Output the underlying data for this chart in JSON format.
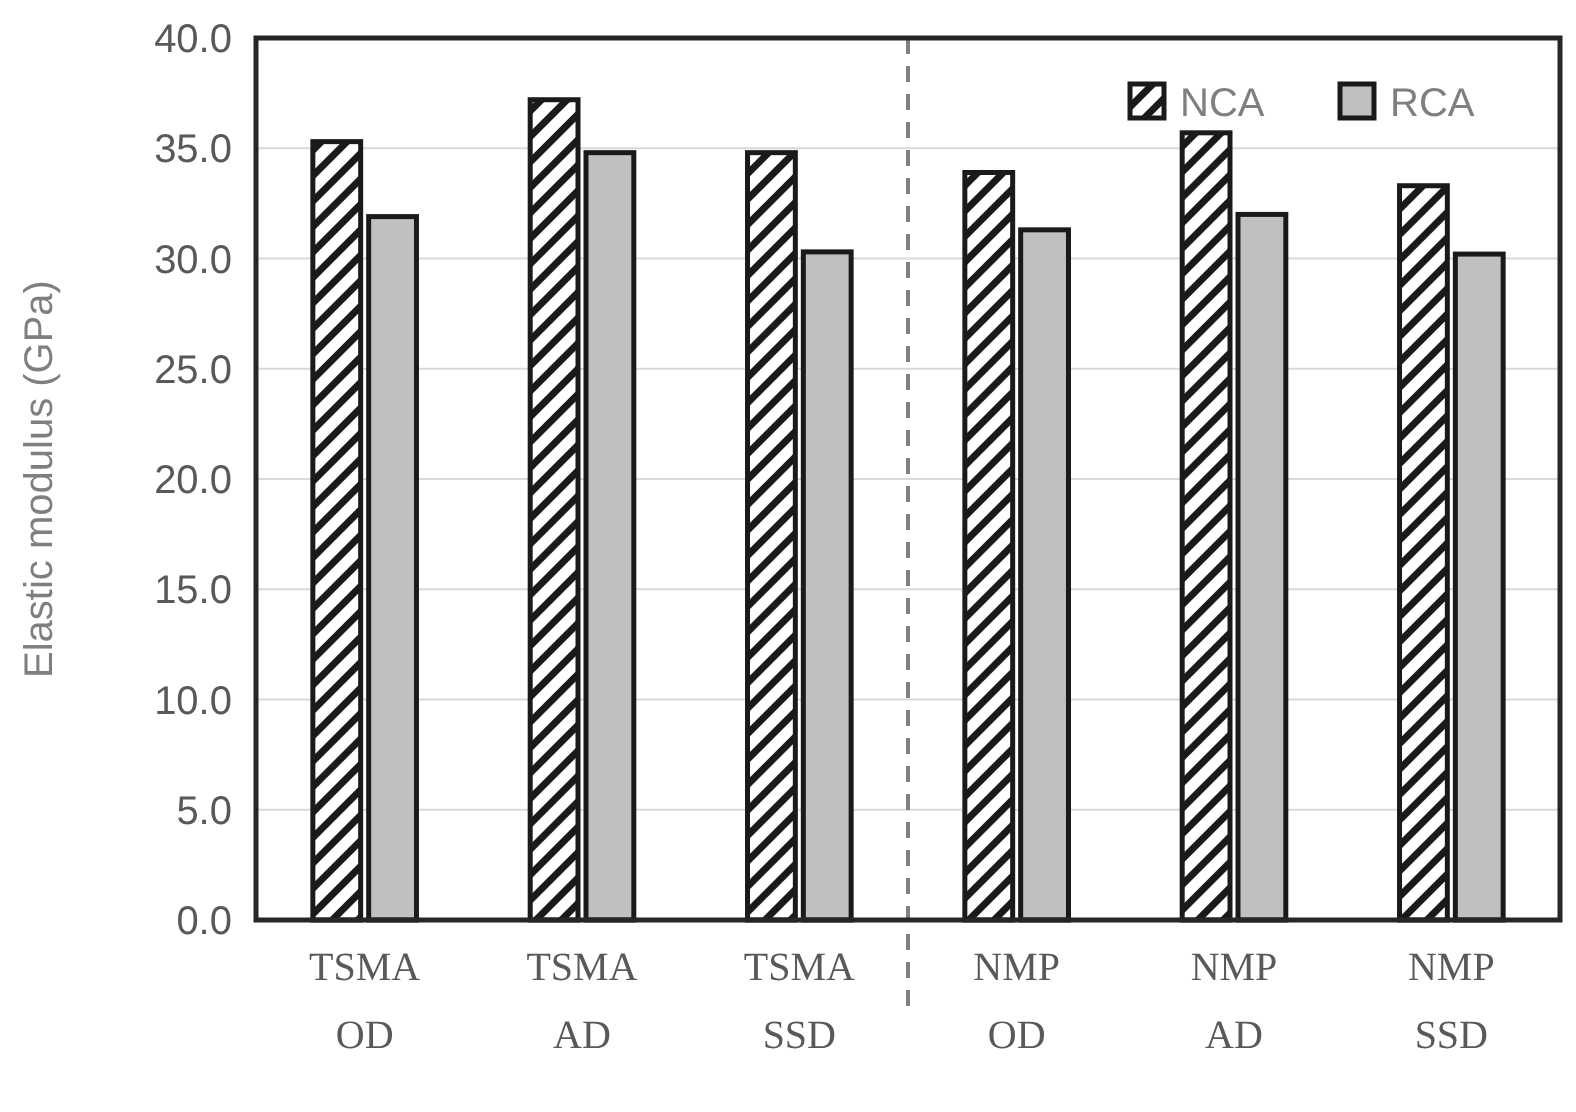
{
  "chart_data": {
    "type": "bar",
    "ylabel": "Elastic modulus (GPa)",
    "categories": [
      "TSMA\nOD",
      "TSMA\nAD",
      "TSMA\nSSD",
      "NMP\nOD",
      "NMP\nAD",
      "NMP\nSSD"
    ],
    "series": [
      {
        "name": "NCA",
        "color": "#1a1a1a",
        "values": [
          35.3,
          37.2,
          34.8,
          33.9,
          35.7,
          33.3
        ]
      },
      {
        "name": "RCA",
        "color": "#c0c0c0",
        "values": [
          31.9,
          34.8,
          30.3,
          31.3,
          32.0,
          30.2
        ]
      }
    ],
    "ylim": [
      0,
      40
    ],
    "yticks": [
      {
        "value": 0,
        "label": "0.0"
      },
      {
        "value": 5,
        "label": "5.0"
      },
      {
        "value": 10,
        "label": "10.0"
      },
      {
        "value": 15,
        "label": "15.0"
      },
      {
        "value": 20,
        "label": "20.0"
      },
      {
        "value": 25,
        "label": "25.0"
      },
      {
        "value": 30,
        "label": "30.0"
      },
      {
        "value": 35,
        "label": "35.0"
      },
      {
        "value": 40,
        "label": "40.0"
      }
    ],
    "grid": "y",
    "legend": "top right"
  }
}
